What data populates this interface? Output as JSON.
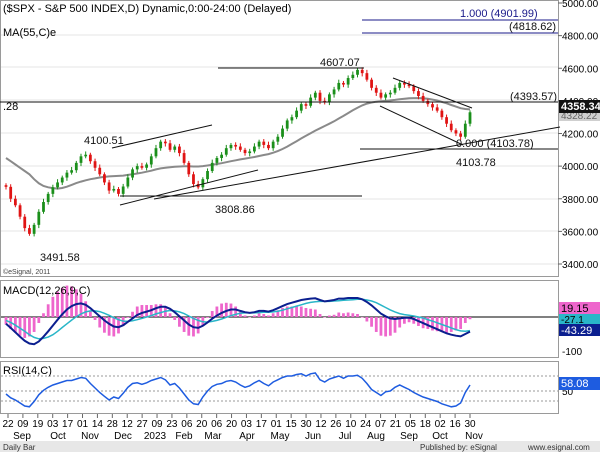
{
  "header": {
    "main_title": "($SPX - S&P 500 INDEX,D) Dynamic,0:00-24:00 (Delayed)",
    "ma_label": "MA(55,C)e",
    "macd_label": "MACD(12,26,9,C)",
    "rsi_label": "RSI(14,C)",
    "copyright": "©eSignal, 2011",
    "footer_left": "Daily Bar",
    "footer_center": "Published by: eSignal",
    "footer_right": "www.esignal.com",
    "price_left_stub": ".28"
  },
  "colors": {
    "up_candle": "#1a8f1a",
    "down_candle": "#e01414",
    "ma_line": "#8a8a8a",
    "macd_line": "#0b1f8f",
    "signal_line": "#29b6c8",
    "histogram": "#ee66cc",
    "rsi_line": "#1e5ce0",
    "fib_line": "#1a1a8a",
    "price_tag_bg": "#111111"
  },
  "chart_data": {
    "type": "candlestick",
    "price_axis": {
      "ticks": [
        3400,
        3600,
        3800,
        4000,
        4200,
        4400,
        4600,
        4800,
        5000
      ],
      "tick_labels": [
        "3400.00",
        "3600.00",
        "3800.00",
        "4000.00",
        "4200.00",
        "4400.00",
        "4600.00",
        "4800.00",
        "5000.00"
      ],
      "ylim": [
        3330,
        5010
      ]
    },
    "x_axis": {
      "day_labels": [
        "22",
        "09",
        "19",
        "03",
        "17",
        "01",
        "14",
        "28",
        "12",
        "27",
        "09",
        "23",
        "06",
        "20",
        "06",
        "20",
        "03",
        "17",
        "01",
        "15",
        "30",
        "12",
        "26",
        "10",
        "24",
        "07",
        "21",
        "05",
        "18",
        "02",
        "16",
        "30"
      ],
      "month_labels": [
        "Sep",
        "Oct",
        "Nov",
        "Dec",
        "2023",
        "Feb",
        "Mar",
        "Apr",
        "May",
        "Jun",
        "Jul",
        "Aug",
        "Sep",
        "Oct",
        "Nov"
      ]
    },
    "price_annotations": {
      "pivots": [
        "3491.58",
        "4100.51",
        "3808.86",
        "4607.07",
        "4103.78"
      ],
      "levels": [
        "1.000 (4901.99)",
        "(4818.62)",
        "(4393.57)",
        "0.000 (4103.78)"
      ],
      "last_price": "4358.34",
      "last_price_faded": "4328.22"
    },
    "macd": {
      "ticks": [
        0,
        -100
      ],
      "tick_labels": [
        "0",
        "-100"
      ],
      "last_values": [
        "19.15",
        "-27.1",
        "-43.29"
      ]
    },
    "rsi": {
      "ticks": [
        50
      ],
      "tick_labels": [
        "50"
      ],
      "last_value": "58.08"
    },
    "closes": [
      3873,
      3800,
      3760,
      3690,
      3620,
      3585,
      3640,
      3720,
      3780,
      3830,
      3870,
      3900,
      3930,
      3960,
      3975,
      4020,
      4060,
      4070,
      4030,
      3990,
      3950,
      3900,
      3850,
      3860,
      3830,
      3875,
      3930,
      3980,
      4000,
      3990,
      4010,
      4060,
      4110,
      4150,
      4140,
      4100,
      4120,
      4080,
      4020,
      3950,
      3890,
      3870,
      3920,
      3970,
      4020,
      4050,
      4070,
      4110,
      4130,
      4120,
      4100,
      4080,
      4090,
      4120,
      4150,
      4130,
      4110,
      4150,
      4180,
      4230,
      4280,
      4300,
      4340,
      4380,
      4370,
      4420,
      4450,
      4400,
      4390,
      4440,
      4470,
      4510,
      4500,
      4540,
      4560,
      4590,
      4570,
      4530,
      4480,
      4450,
      4420,
      4440,
      4450,
      4480,
      4510,
      4500,
      4490,
      4460,
      4430,
      4400,
      4380,
      4360,
      4340,
      4300,
      4260,
      4220,
      4200,
      4180,
      4260,
      4330
    ],
    "ma55": [
      4050,
      4030,
      4010,
      3990,
      3970,
      3950,
      3920,
      3895,
      3878,
      3870,
      3865,
      3862,
      3866,
      3874,
      3885,
      3896,
      3905,
      3913,
      3920,
      3925,
      3930,
      3934,
      3937,
      3939,
      3940,
      3942,
      3946,
      3950,
      3955,
      3960,
      3966,
      3972,
      3980,
      3986,
      3990,
      3993,
      3996,
      3998,
      3999,
      3999,
      3998,
      3998,
      4000,
      4004,
      4008,
      4013,
      4018,
      4024,
      4030,
      4036,
      4041,
      4046,
      4051,
      4056,
      4062,
      4068,
      4074,
      4082,
      4092,
      4105,
      4120,
      4136,
      4153,
      4170,
      4186,
      4202,
      4218,
      4232,
      4246,
      4260,
      4275,
      4292,
      4308,
      4325,
      4342,
      4358,
      4372,
      4383,
      4390,
      4395,
      4398,
      4400,
      4403,
      4406,
      4410,
      4413,
      4416,
      4417,
      4417,
      4416,
      4413,
      4408,
      4402,
      4394,
      4385,
      4375,
      4365,
      4355,
      4350,
      4348
    ],
    "macd_values": [
      -20,
      -32,
      -45,
      -58,
      -70,
      -78,
      -80,
      -72,
      -58,
      -42,
      -25,
      -8,
      8,
      22,
      32,
      38,
      40,
      36,
      26,
      14,
      2,
      -10,
      -20,
      -28,
      -30,
      -24,
      -14,
      -4,
      6,
      12,
      16,
      20,
      26,
      30,
      30,
      24,
      14,
      2,
      -10,
      -22,
      -30,
      -32,
      -26,
      -16,
      -5,
      4,
      12,
      18,
      22,
      22,
      18,
      14,
      12,
      14,
      18,
      18,
      16,
      20,
      26,
      32,
      38,
      42,
      46,
      50,
      52,
      54,
      55,
      50,
      46,
      48,
      50,
      54,
      54,
      56,
      56,
      56,
      52,
      44,
      34,
      22,
      10,
      2,
      -4,
      -6,
      -4,
      -2,
      -2,
      -6,
      -12,
      -18,
      -24,
      -30,
      -36,
      -42,
      -48,
      -52,
      -55,
      -57,
      -50,
      -43
    ],
    "signal_values": [
      -10,
      -16,
      -24,
      -33,
      -42,
      -52,
      -60,
      -64,
      -63,
      -59,
      -52,
      -42,
      -31,
      -20,
      -9,
      1,
      9,
      15,
      18,
      18,
      16,
      11,
      5,
      -2,
      -8,
      -12,
      -13,
      -11,
      -8,
      -4,
      0,
      4,
      9,
      13,
      17,
      19,
      18,
      15,
      10,
      3,
      -4,
      -10,
      -14,
      -15,
      -13,
      -10,
      -6,
      -1,
      4,
      8,
      11,
      12,
      12,
      12,
      13,
      14,
      14,
      15,
      17,
      20,
      24,
      28,
      32,
      36,
      40,
      43,
      45,
      46,
      46,
      46,
      47,
      48,
      49,
      50,
      51,
      52,
      52,
      50,
      47,
      42,
      35,
      28,
      21,
      15,
      10,
      7,
      5,
      3,
      0,
      -3,
      -8,
      -12,
      -17,
      -22,
      -27,
      -32,
      -37,
      -41,
      -42,
      -40
    ],
    "rsi_values": [
      46,
      41,
      38,
      34,
      30,
      29,
      36,
      45,
      51,
      55,
      58,
      60,
      62,
      64,
      64,
      66,
      68,
      67,
      60,
      54,
      48,
      43,
      38,
      42,
      40,
      47,
      55,
      60,
      61,
      59,
      61,
      64,
      66,
      68,
      65,
      58,
      60,
      54,
      46,
      38,
      33,
      32,
      42,
      50,
      56,
      59,
      60,
      63,
      64,
      62,
      58,
      55,
      57,
      61,
      64,
      60,
      57,
      62,
      65,
      68,
      70,
      70,
      72,
      73,
      70,
      73,
      74,
      65,
      62,
      66,
      68,
      70,
      67,
      70,
      70,
      71,
      67,
      60,
      52,
      48,
      44,
      49,
      50,
      55,
      58,
      55,
      52,
      48,
      45,
      42,
      40,
      38,
      36,
      33,
      31,
      29,
      30,
      34,
      48,
      58
    ]
  }
}
